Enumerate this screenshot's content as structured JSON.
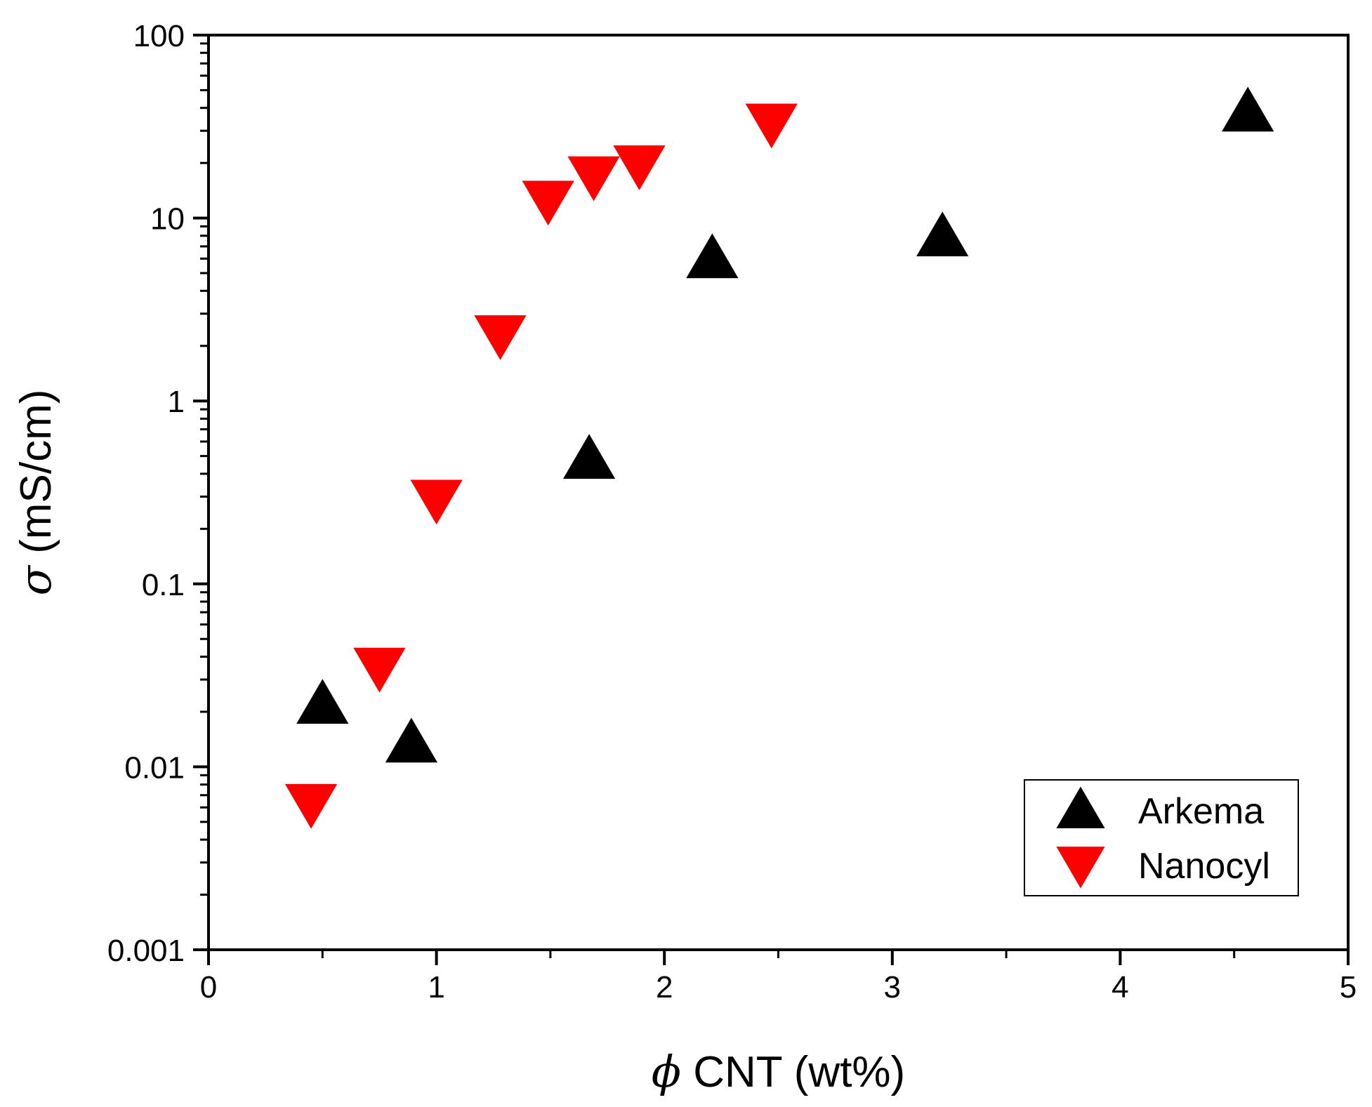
{
  "chart_data": {
    "type": "scatter",
    "title": "",
    "xlabel": {
      "symbol": "ϕ",
      "text": " CNT (wt%)"
    },
    "ylabel": {
      "symbol": "σ",
      "text": " (mS/cm)"
    },
    "xlim": [
      0,
      5
    ],
    "ylim": [
      0.001,
      100
    ],
    "yscale": "log",
    "x_ticks": [
      "0",
      "1",
      "2",
      "3",
      "4",
      "5"
    ],
    "y_ticks": [
      "0.001",
      "0.01",
      "0.1",
      "1",
      "10",
      "100"
    ],
    "grid": false,
    "legend_position": "bottom-right",
    "series": [
      {
        "name": "Arkema",
        "marker": "triangle-up",
        "color": "#000000",
        "points": [
          {
            "x": 0.5,
            "y": 0.022
          },
          {
            "x": 0.89,
            "y": 0.0135
          },
          {
            "x": 1.67,
            "y": 0.48
          },
          {
            "x": 2.21,
            "y": 6.0
          },
          {
            "x": 3.22,
            "y": 7.9
          },
          {
            "x": 4.56,
            "y": 38
          }
        ]
      },
      {
        "name": "Nanocyl",
        "marker": "triangle-down",
        "color": "#ff0000",
        "points": [
          {
            "x": 0.45,
            "y": 0.0063
          },
          {
            "x": 0.75,
            "y": 0.035
          },
          {
            "x": 1.0,
            "y": 0.29
          },
          {
            "x": 1.28,
            "y": 2.3
          },
          {
            "x": 1.49,
            "y": 12.5
          },
          {
            "x": 1.69,
            "y": 17
          },
          {
            "x": 1.89,
            "y": 19.5
          },
          {
            "x": 2.47,
            "y": 33
          }
        ]
      }
    ]
  }
}
